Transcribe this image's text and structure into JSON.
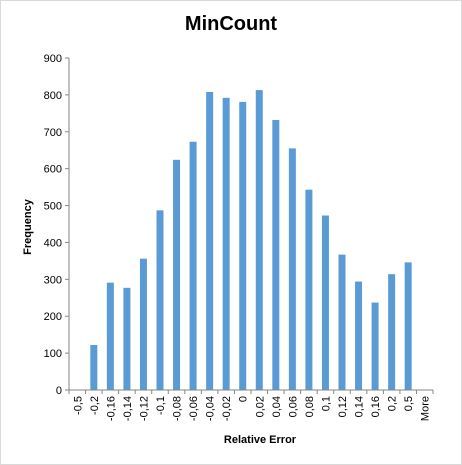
{
  "chart_data": {
    "type": "bar",
    "title": "MinCount",
    "xlabel": "Relative Error",
    "ylabel": "Frequency",
    "ylim": [
      0,
      900
    ],
    "yticks": [
      0,
      100,
      200,
      300,
      400,
      500,
      600,
      700,
      800,
      900
    ],
    "grid": false,
    "legend": "none",
    "bar_color": "#5b9bd5",
    "categories": [
      "-0,5",
      "-0,2",
      "-0,16",
      "-0,14",
      "-0,12",
      "-0,1",
      "-0,08",
      "-0,06",
      "-0,04",
      "-0,02",
      "0",
      "0,02",
      "0,04",
      "0,06",
      "0,08",
      "0,1",
      "0,12",
      "0,14",
      "0,16",
      "0,2",
      "0,5",
      "More"
    ],
    "values": [
      0,
      122,
      291,
      277,
      356,
      487,
      624,
      673,
      808,
      792,
      781,
      813,
      732,
      655,
      543,
      473,
      367,
      294,
      237,
      314,
      346,
      0
    ]
  }
}
